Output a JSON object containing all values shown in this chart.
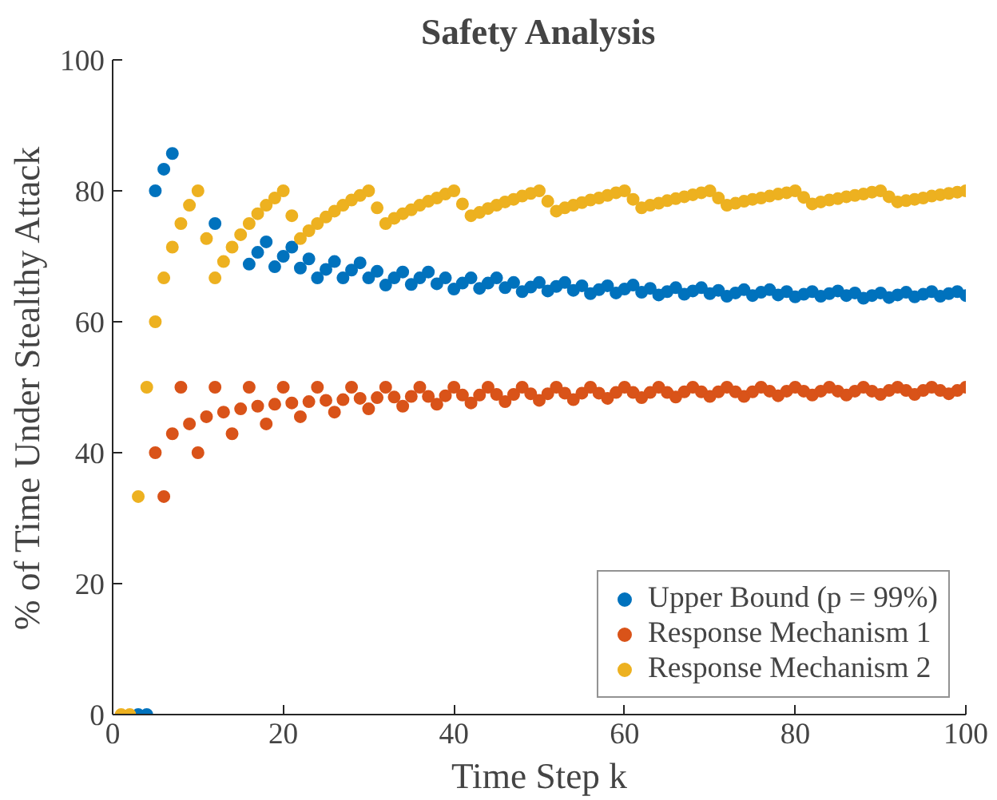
{
  "chart_data": {
    "type": "scatter",
    "title": "Safety Analysis",
    "xlabel": "Time Step k",
    "ylabel": "% of Time Under Stealthy Attack",
    "x": [
      1,
      2,
      3,
      4,
      5,
      6,
      7,
      8,
      9,
      10,
      11,
      12,
      13,
      14,
      15,
      16,
      17,
      18,
      19,
      20,
      21,
      22,
      23,
      24,
      25,
      26,
      27,
      28,
      29,
      30,
      31,
      32,
      33,
      34,
      35,
      36,
      37,
      38,
      39,
      40,
      41,
      42,
      43,
      44,
      45,
      46,
      47,
      48,
      49,
      50,
      51,
      52,
      53,
      54,
      55,
      56,
      57,
      58,
      59,
      60,
      61,
      62,
      63,
      64,
      65,
      66,
      67,
      68,
      69,
      70,
      71,
      72,
      73,
      74,
      75,
      76,
      77,
      78,
      79,
      80,
      81,
      82,
      83,
      84,
      85,
      86,
      87,
      88,
      89,
      90,
      91,
      92,
      93,
      94,
      95,
      96,
      97,
      98,
      99,
      100
    ],
    "series": [
      {
        "name": "Upper Bound (p = 99%)",
        "color": "#0072bd",
        "values": [
          null,
          null,
          0,
          0,
          80,
          83.3,
          85.7,
          null,
          null,
          null,
          null,
          75,
          null,
          null,
          null,
          68.8,
          70.6,
          72.2,
          68.4,
          70,
          71.4,
          68.2,
          69.6,
          66.7,
          68,
          69.2,
          66.7,
          67.9,
          69,
          66.7,
          67.7,
          65.6,
          66.7,
          67.6,
          65.7,
          66.7,
          67.6,
          65.8,
          66.7,
          65,
          65.9,
          66.7,
          65.1,
          65.9,
          66.7,
          65.2,
          66,
          64.6,
          65.3,
          66,
          64.7,
          65.4,
          66,
          64.8,
          65.5,
          64.3,
          64.9,
          65.5,
          64.4,
          65.0,
          65.6,
          64.5,
          65.1,
          64.1,
          64.6,
          65.2,
          64.2,
          64.7,
          65.2,
          64.3,
          64.8,
          63.9,
          64.4,
          64.9,
          64.0,
          64.5,
          64.9,
          64.1,
          64.6,
          63.8,
          64.2,
          64.6,
          63.9,
          64.3,
          64.7,
          64.0,
          64.4,
          63.6,
          64.0,
          64.4,
          63.7,
          64.1,
          64.5,
          63.8,
          64.2,
          64.6,
          63.9,
          64.3,
          64.6,
          64.0
        ]
      },
      {
        "name": "Response Mechanism 1",
        "color": "#d95319",
        "values": [
          null,
          null,
          null,
          null,
          40.0,
          33.3,
          42.9,
          50.0,
          44.4,
          40.0,
          45.5,
          50.0,
          46.2,
          42.9,
          46.7,
          50.0,
          47.1,
          44.4,
          47.4,
          50.0,
          47.6,
          45.5,
          47.8,
          50.0,
          48.0,
          46.2,
          48.1,
          50.0,
          48.3,
          46.7,
          48.4,
          50.0,
          48.5,
          47.1,
          48.6,
          50.0,
          48.6,
          47.4,
          48.7,
          50.0,
          48.8,
          47.6,
          48.8,
          50.0,
          48.9,
          47.8,
          48.9,
          50.0,
          49.0,
          48.0,
          49.0,
          50.0,
          49.1,
          48.1,
          49.1,
          50.0,
          49.1,
          48.3,
          49.2,
          50.0,
          49.2,
          48.4,
          49.2,
          50.0,
          49.2,
          48.5,
          49.3,
          50.0,
          49.3,
          48.6,
          49.3,
          50.0,
          49.3,
          48.6,
          49.3,
          50.0,
          49.4,
          48.7,
          49.4,
          50.0,
          49.4,
          48.8,
          49.4,
          50.0,
          49.4,
          48.8,
          49.4,
          50.0,
          49.4,
          48.9,
          49.5,
          50.0,
          49.5,
          48.9,
          49.5,
          50.0,
          49.5,
          49.0,
          49.5,
          50.0
        ]
      },
      {
        "name": "Response Mechanism 2",
        "color": "#edb120",
        "values": [
          0.0,
          0.0,
          33.3,
          50.0,
          60.0,
          66.7,
          71.4,
          75.0,
          77.8,
          80.0,
          72.7,
          66.7,
          69.2,
          71.4,
          73.3,
          75.0,
          76.5,
          77.8,
          78.9,
          80.0,
          76.2,
          72.7,
          73.9,
          75.0,
          76.0,
          76.9,
          77.8,
          78.6,
          79.3,
          80.0,
          77.4,
          75.0,
          75.8,
          76.5,
          77.1,
          77.8,
          78.4,
          78.9,
          79.5,
          80.0,
          78.0,
          76.2,
          76.7,
          77.3,
          77.8,
          78.3,
          78.7,
          79.2,
          79.6,
          80.0,
          78.4,
          76.9,
          77.4,
          77.8,
          78.2,
          78.6,
          78.9,
          79.3,
          79.7,
          80.0,
          78.7,
          77.4,
          77.8,
          78.1,
          78.5,
          78.8,
          79.1,
          79.4,
          79.7,
          80.0,
          78.9,
          77.8,
          78.1,
          78.4,
          78.7,
          78.9,
          79.2,
          79.5,
          79.7,
          80.0,
          79.0,
          78.0,
          78.3,
          78.6,
          78.8,
          79.1,
          79.3,
          79.5,
          79.8,
          80.0,
          79.1,
          78.3,
          78.5,
          78.7,
          78.9,
          79.2,
          79.4,
          79.6,
          79.8,
          80.0
        ]
      }
    ],
    "xlim": [
      0,
      100
    ],
    "ylim": [
      0,
      100
    ],
    "xticks": [
      0,
      20,
      40,
      60,
      80,
      100
    ],
    "yticks": [
      0,
      20,
      40,
      60,
      80,
      100
    ],
    "grid": false,
    "legend": "bottom right",
    "marker": "circle"
  }
}
